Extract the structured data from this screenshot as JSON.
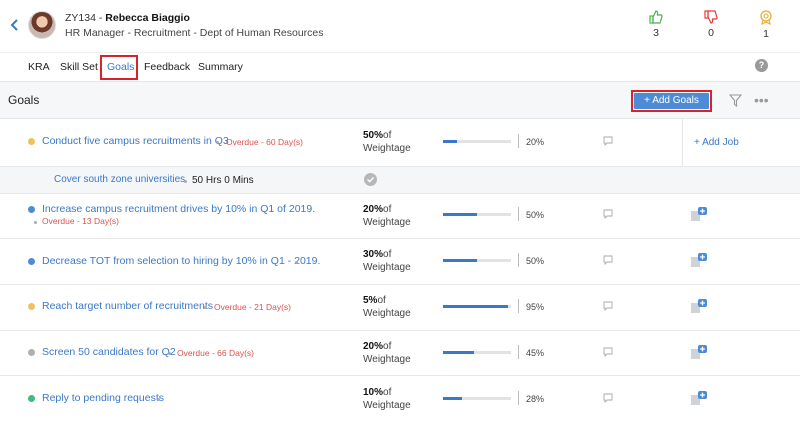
{
  "employee": {
    "id": "ZY134",
    "name": "Rebecca Biaggio",
    "subtitle": "HR Manager - Recruitment - Dept of Human Resources"
  },
  "stats": [
    {
      "icon": "thumbs-up-icon",
      "count": "3",
      "color": "#4caf50"
    },
    {
      "icon": "thumbs-down-icon",
      "count": "0",
      "color": "#e53935"
    },
    {
      "icon": "badge-icon",
      "count": "1",
      "color": "#f0a830"
    }
  ],
  "tabs": [
    "KRA",
    "Skill Set",
    "Goals",
    "Feedback",
    "Summary"
  ],
  "active_tab": "Goals",
  "help_label": "?",
  "section": {
    "title": "Goals",
    "add_button": "Add Goals",
    "add_icon": "+",
    "more": "•••"
  },
  "weight_suffix": "of",
  "weight_label": "Weightage",
  "add_job": "+ Add Job",
  "goals": [
    {
      "title": "Conduct five campus recruitments in Q3",
      "overdue": "Overdue - 60 Day(s)",
      "weight": "50%",
      "progress": 20,
      "progress_label": "20%",
      "status_color": "#f0c060"
    },
    {
      "title": "Increase campus recruitment drives by 10% in Q1 of 2019.",
      "overdue": "Overdue - 13 Day(s)",
      "weight": "20%",
      "progress": 50,
      "progress_label": "50%",
      "status_color": "#4e8bd6"
    },
    {
      "title": "Decrease TOT from selection to hiring by 10% in Q1 - 2019.",
      "overdue": "",
      "weight": "30%",
      "progress": 50,
      "progress_label": "50%",
      "status_color": "#4e8bd6"
    },
    {
      "title": "Reach target number of recruitments",
      "overdue": "Overdue - 21 Day(s)",
      "weight": "5%",
      "progress": 95,
      "progress_label": "95%",
      "status_color": "#f0c060"
    },
    {
      "title": "Screen 50 candidates for Q2",
      "overdue": "Overdue - 66 Day(s)",
      "weight": "20%",
      "progress": 45,
      "progress_label": "45%",
      "status_color": "#b0b0b0"
    },
    {
      "title": "Reply to pending requests",
      "overdue": "",
      "weight": "10%",
      "progress": 28,
      "progress_label": "28%",
      "status_color": "#3dbd7d"
    }
  ],
  "subtask": {
    "title": "Cover south zone universities",
    "hours": "50 Hrs 0 Mins"
  }
}
